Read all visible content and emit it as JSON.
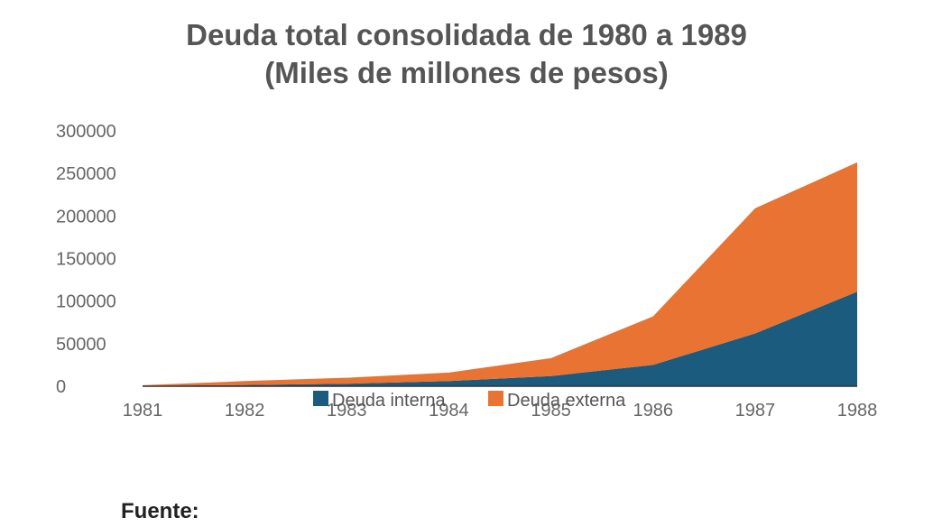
{
  "chart_data": {
    "type": "area",
    "stacked": true,
    "title": [
      "Deuda total consolidada de 1980 a 1989",
      "(Miles de millones de pesos)"
    ],
    "xlabel": "",
    "ylabel": "",
    "categories": [
      "1981",
      "1982",
      "1983",
      "1984",
      "1985",
      "1986",
      "1987",
      "1988"
    ],
    "series": [
      {
        "name": "Deuda interna",
        "color": "#1a5b7e",
        "values": [
          500,
          1500,
          3000,
          6000,
          12000,
          25000,
          62000,
          111000
        ]
      },
      {
        "name": "Deuda externa",
        "color": "#e87332",
        "values": [
          700,
          4500,
          7000,
          10000,
          21000,
          57000,
          147000,
          152000
        ]
      }
    ],
    "ylim": [
      0,
      300000
    ],
    "yticks": [
      "300000",
      "250000",
      "200000",
      "150000",
      "100000",
      "50000",
      "0"
    ],
    "legend": "bottom",
    "grid": false
  },
  "footer": {
    "source_label": "Fuente:"
  }
}
